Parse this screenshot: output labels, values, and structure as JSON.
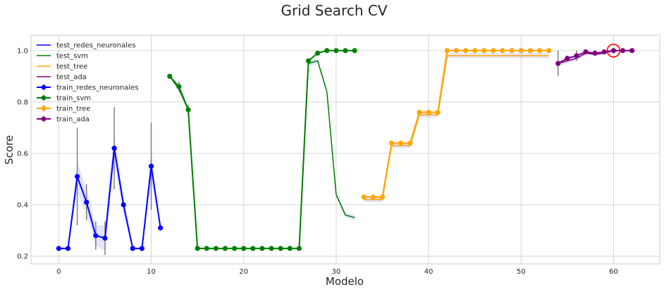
{
  "chart_data": {
    "type": "line",
    "title": "Grid Search CV",
    "xlabel": "Modelo",
    "ylabel": "Score",
    "xlim": [
      -3,
      65
    ],
    "ylim": [
      0.17,
      1.06
    ],
    "xticks": [
      0,
      10,
      20,
      30,
      40,
      50,
      60
    ],
    "yticks": [
      0.2,
      0.4,
      0.6,
      0.8,
      1.0
    ],
    "grid": true,
    "legend_position": "top-left",
    "test_series": [
      {
        "name": "test_redes_neuronales",
        "color": "#0000ff",
        "x": [
          0,
          1,
          2,
          3,
          4,
          5,
          6,
          7,
          8,
          9,
          10,
          11
        ],
        "y": [
          0.23,
          0.23,
          0.51,
          0.41,
          0.28,
          0.27,
          0.62,
          0.4,
          0.23,
          0.23,
          0.55,
          0.31
        ],
        "band": [
          0,
          0,
          0.06,
          0.05,
          0.04,
          0.05,
          0.06,
          0.04,
          0,
          0,
          0.06,
          0
        ]
      },
      {
        "name": "test_svm",
        "color": "#008000",
        "x": [
          12,
          13,
          14,
          15,
          16,
          17,
          18,
          19,
          20,
          21,
          22,
          23,
          24,
          25,
          26,
          27,
          28,
          29,
          30,
          31,
          32
        ],
        "y": [
          0.9,
          0.85,
          0.77,
          0.23,
          0.23,
          0.23,
          0.23,
          0.23,
          0.23,
          0.23,
          0.23,
          0.23,
          0.23,
          0.23,
          0.23,
          0.95,
          0.96,
          0.84,
          0.44,
          0.36,
          0.35
        ],
        "band": [
          0,
          0.01,
          0.01,
          0,
          0,
          0,
          0,
          0,
          0,
          0,
          0,
          0,
          0,
          0,
          0,
          0.01,
          0.01,
          0.01,
          0.01,
          0.01,
          0.01
        ]
      },
      {
        "name": "test_tree",
        "color": "#ffa500",
        "x": [
          33,
          34,
          35,
          36,
          37,
          38,
          39,
          40,
          41,
          42,
          43,
          44,
          45,
          46,
          47,
          48,
          49,
          50,
          51,
          52,
          53
        ],
        "y": [
          0.42,
          0.42,
          0.42,
          0.63,
          0.63,
          0.63,
          0.75,
          0.75,
          0.75,
          0.98,
          0.98,
          0.98,
          0.98,
          0.98,
          0.98,
          0.98,
          0.98,
          0.98,
          0.98,
          0.98,
          0.98
        ],
        "band": [
          0.01,
          0.01,
          0.01,
          0.01,
          0.01,
          0.01,
          0.01,
          0.01,
          0.01,
          0.01,
          0.01,
          0.01,
          0.01,
          0.01,
          0.01,
          0.01,
          0.01,
          0.01,
          0.01,
          0.01,
          0.01
        ]
      },
      {
        "name": "test_ada",
        "color": "#800080",
        "x": [
          54,
          55,
          56,
          57,
          58,
          59,
          60,
          61,
          62
        ],
        "y": [
          0.95,
          0.96,
          0.97,
          0.99,
          0.985,
          0.99,
          1.0,
          1.0,
          1.0
        ],
        "band": [
          0.01,
          0.01,
          0.01,
          0.005,
          0.005,
          0.005,
          0.003,
          0.003,
          0.003
        ]
      }
    ],
    "train_series": [
      {
        "name": "train_redes_neuronales",
        "color": "#0000ff",
        "x": [
          0,
          1,
          2,
          3,
          4,
          5,
          6,
          7,
          8,
          9,
          10,
          11
        ],
        "y": [
          0.23,
          0.23,
          0.51,
          0.41,
          0.28,
          0.27,
          0.62,
          0.4,
          0.23,
          0.23,
          0.55,
          0.31
        ],
        "err": [
          0,
          0,
          0.19,
          0.07,
          0.055,
          0.065,
          0.16,
          0,
          0,
          0,
          0.17,
          0
        ]
      },
      {
        "name": "train_svm",
        "color": "#008000",
        "x": [
          12,
          13,
          14,
          15,
          16,
          17,
          18,
          19,
          20,
          21,
          22,
          23,
          24,
          25,
          26,
          27,
          28,
          29,
          30,
          31,
          32
        ],
        "y": [
          0.9,
          0.86,
          0.77,
          0.23,
          0.23,
          0.23,
          0.23,
          0.23,
          0.23,
          0.23,
          0.23,
          0.23,
          0.23,
          0.23,
          0.23,
          0.96,
          0.99,
          1.0,
          1.0,
          1.0,
          1.0
        ],
        "err": [
          0,
          0.02,
          0.02,
          0,
          0,
          0,
          0,
          0,
          0,
          0,
          0,
          0,
          0,
          0,
          0,
          0,
          0,
          0,
          0,
          0,
          0
        ]
      },
      {
        "name": "train_tree",
        "color": "#ffa500",
        "x": [
          33,
          34,
          35,
          36,
          37,
          38,
          39,
          40,
          41,
          42,
          43,
          44,
          45,
          46,
          47,
          48,
          49,
          50,
          51,
          52,
          53
        ],
        "y": [
          0.43,
          0.43,
          0.43,
          0.64,
          0.64,
          0.64,
          0.76,
          0.76,
          0.76,
          1.0,
          1.0,
          1.0,
          1.0,
          1.0,
          1.0,
          1.0,
          1.0,
          1.0,
          1.0,
          1.0,
          1.0
        ],
        "err": [
          0,
          0,
          0,
          0,
          0,
          0,
          0,
          0,
          0,
          0,
          0,
          0,
          0,
          0,
          0,
          0,
          0,
          0,
          0,
          0,
          0
        ]
      },
      {
        "name": "train_ada",
        "color": "#800080",
        "x": [
          54,
          55,
          56,
          57,
          58,
          59,
          60,
          61,
          62
        ],
        "y": [
          0.95,
          0.97,
          0.98,
          0.995,
          0.99,
          0.995,
          1.0,
          1.0,
          1.0
        ],
        "err": [
          0.05,
          0,
          0.02,
          0,
          0,
          0,
          0,
          0,
          0
        ]
      }
    ],
    "highlight": {
      "x": 60,
      "y": 1.0,
      "color": "#ff0000"
    }
  }
}
